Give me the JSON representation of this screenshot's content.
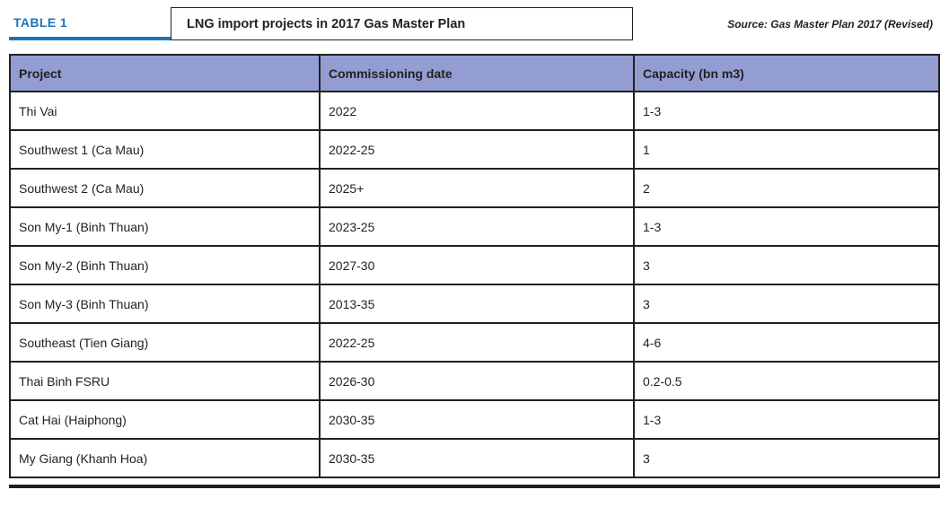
{
  "header": {
    "table_label": "TABLE 1",
    "title": "LNG import projects in 2017 Gas Master Plan",
    "source": "Source: Gas Master Plan 2017 (Revised)"
  },
  "colors": {
    "accent_blue": "#1c75bc",
    "table_header_fill": "#939dd2",
    "border": "#231f20"
  },
  "chart_data": {
    "type": "table",
    "title": "LNG import projects in 2017 Gas Master Plan",
    "source": "Source: Gas Master Plan 2017 (Revised)",
    "columns": [
      "Project",
      "Commissioning date",
      "Capacity (bn m3)"
    ],
    "rows": [
      [
        "Thi Vai",
        "2022",
        "1-3"
      ],
      [
        "Southwest 1 (Ca Mau)",
        "2022-25",
        "1"
      ],
      [
        "Southwest 2 (Ca Mau)",
        "2025+",
        "2"
      ],
      [
        "Son My-1 (Binh Thuan)",
        "2023-25",
        "1-3"
      ],
      [
        "Son My-2 (Binh Thuan)",
        "2027-30",
        "3"
      ],
      [
        "Son My-3 (Binh Thuan)",
        "2013-35",
        "3"
      ],
      [
        "Southeast (Tien Giang)",
        "2022-25",
        "4-6"
      ],
      [
        "Thai Binh FSRU",
        "2026-30",
        "0.2-0.5"
      ],
      [
        "Cat Hai (Haiphong)",
        "2030-35",
        "1-3"
      ],
      [
        "My Giang (Khanh Hoa)",
        "2030-35",
        "3"
      ]
    ]
  }
}
